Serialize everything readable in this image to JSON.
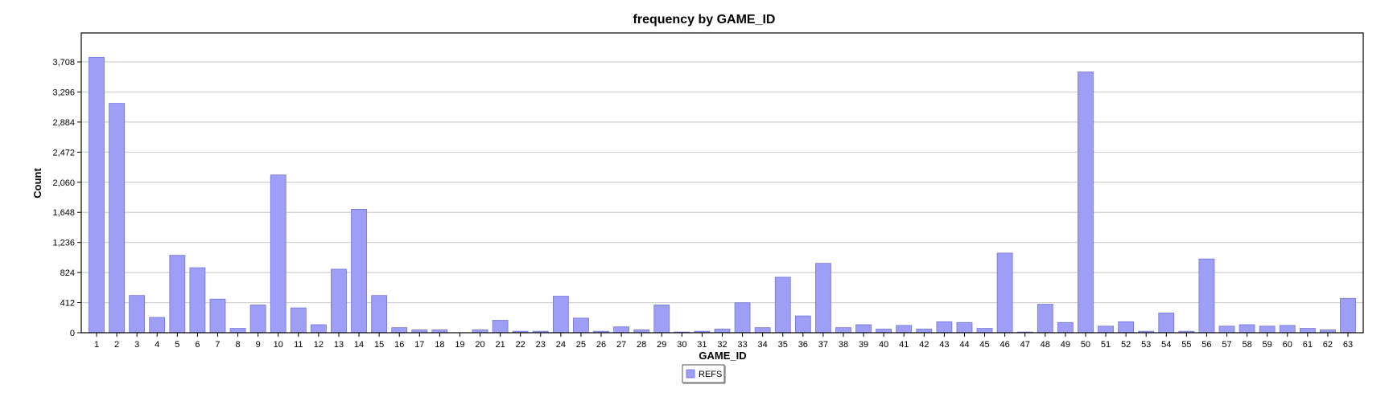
{
  "chart_data": {
    "type": "bar",
    "title": "frequency by GAME_ID",
    "xlabel": "GAME_ID",
    "ylabel": "Count",
    "categories": [
      "1",
      "2",
      "3",
      "4",
      "5",
      "6",
      "7",
      "8",
      "9",
      "10",
      "11",
      "12",
      "13",
      "14",
      "15",
      "16",
      "17",
      "18",
      "19",
      "20",
      "21",
      "22",
      "23",
      "24",
      "25",
      "26",
      "27",
      "28",
      "29",
      "30",
      "31",
      "32",
      "33",
      "34",
      "35",
      "36",
      "37",
      "38",
      "39",
      "40",
      "41",
      "42",
      "43",
      "44",
      "45",
      "46",
      "47",
      "48",
      "49",
      "50",
      "51",
      "52",
      "53",
      "54",
      "55",
      "56",
      "57",
      "58",
      "59",
      "60",
      "61",
      "62",
      "63"
    ],
    "yticks": [
      "0",
      "412",
      "824",
      "1,236",
      "1,648",
      "2,060",
      "2,472",
      "2,884",
      "3,296",
      "3,708"
    ],
    "ylim": [
      0,
      4120
    ],
    "grid": true,
    "legend_position": "bottom-center",
    "series": [
      {
        "name": "REFS",
        "color": "#9e9ef7",
        "values": [
          3770,
          3140,
          510,
          210,
          1060,
          890,
          460,
          60,
          380,
          2160,
          340,
          110,
          870,
          1690,
          510,
          70,
          40,
          40,
          0,
          40,
          170,
          20,
          20,
          500,
          200,
          20,
          80,
          40,
          380,
          10,
          20,
          50,
          410,
          70,
          760,
          230,
          950,
          70,
          110,
          50,
          100,
          50,
          150,
          140,
          60,
          1090,
          10,
          390,
          140,
          3570,
          90,
          150,
          20,
          270,
          20,
          1010,
          90,
          110,
          90,
          100,
          60,
          40,
          470
        ]
      }
    ]
  }
}
